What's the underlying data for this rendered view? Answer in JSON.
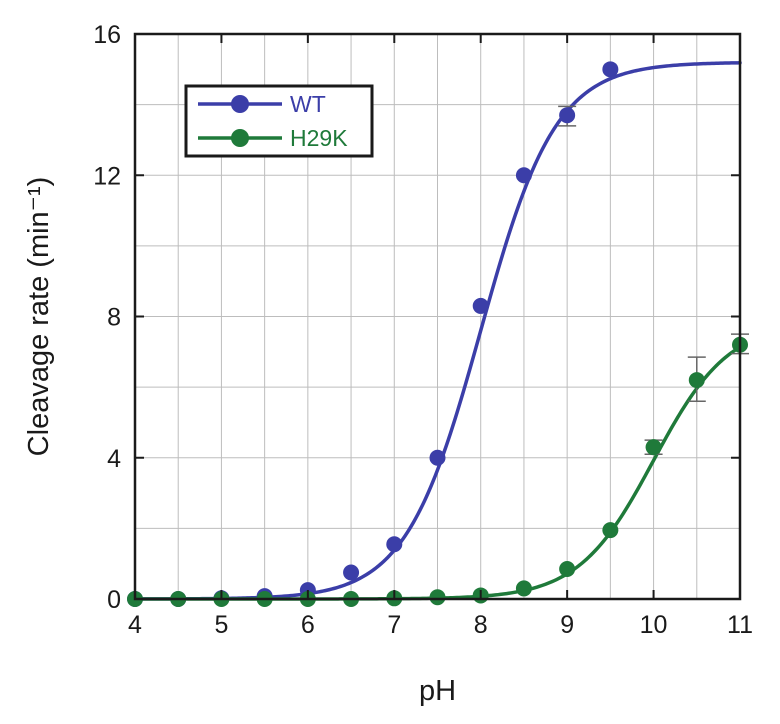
{
  "chart_data": {
    "type": "scatter",
    "xlabel": "pH",
    "ylabel": "Cleavage rate (min⁻¹)",
    "xlim": [
      4,
      11
    ],
    "ylim": [
      0,
      16
    ],
    "x_ticks": [
      4,
      5,
      6,
      7,
      8,
      9,
      10,
      11
    ],
    "y_ticks": [
      0,
      4,
      8,
      12,
      16
    ],
    "grid": true,
    "legend_position": "top-left",
    "series": [
      {
        "name": "WT",
        "color": "#3b3ea8",
        "points": [
          {
            "x": 4.0,
            "y": 0.0
          },
          {
            "x": 4.5,
            "y": 0.0
          },
          {
            "x": 5.0,
            "y": 0.02
          },
          {
            "x": 5.5,
            "y": 0.08
          },
          {
            "x": 6.0,
            "y": 0.25
          },
          {
            "x": 6.5,
            "y": 0.75
          },
          {
            "x": 7.0,
            "y": 1.55
          },
          {
            "x": 7.5,
            "y": 4.0
          },
          {
            "x": 8.0,
            "y": 8.3
          },
          {
            "x": 8.5,
            "y": 12.0
          },
          {
            "x": 9.0,
            "y": 13.7
          },
          {
            "x": 9.5,
            "y": 15.0
          }
        ],
        "error_bars": [
          {
            "x": 9.0,
            "low": 13.4,
            "high": 13.95
          }
        ],
        "fit": {
          "ymax": 15.2,
          "pKa": 8.0
        }
      },
      {
        "name": "H29K",
        "color": "#1f7a3a",
        "points": [
          {
            "x": 4.0,
            "y": 0.0
          },
          {
            "x": 4.5,
            "y": 0.0
          },
          {
            "x": 5.0,
            "y": 0.0
          },
          {
            "x": 5.5,
            "y": 0.0
          },
          {
            "x": 6.0,
            "y": 0.0
          },
          {
            "x": 6.5,
            "y": 0.0
          },
          {
            "x": 7.0,
            "y": 0.02
          },
          {
            "x": 7.5,
            "y": 0.05
          },
          {
            "x": 8.0,
            "y": 0.1
          },
          {
            "x": 8.5,
            "y": 0.3
          },
          {
            "x": 9.0,
            "y": 0.85
          },
          {
            "x": 9.5,
            "y": 1.95
          },
          {
            "x": 10.0,
            "y": 4.3
          },
          {
            "x": 10.5,
            "y": 6.2
          },
          {
            "x": 11.0,
            "y": 7.2
          }
        ],
        "error_bars": [
          {
            "x": 10.0,
            "low": 4.1,
            "high": 4.5
          },
          {
            "x": 10.5,
            "low": 5.6,
            "high": 6.85
          },
          {
            "x": 11.0,
            "low": 6.95,
            "high": 7.5
          }
        ],
        "fit": {
          "ymax": 7.85,
          "pKa": 10.0
        }
      }
    ]
  }
}
